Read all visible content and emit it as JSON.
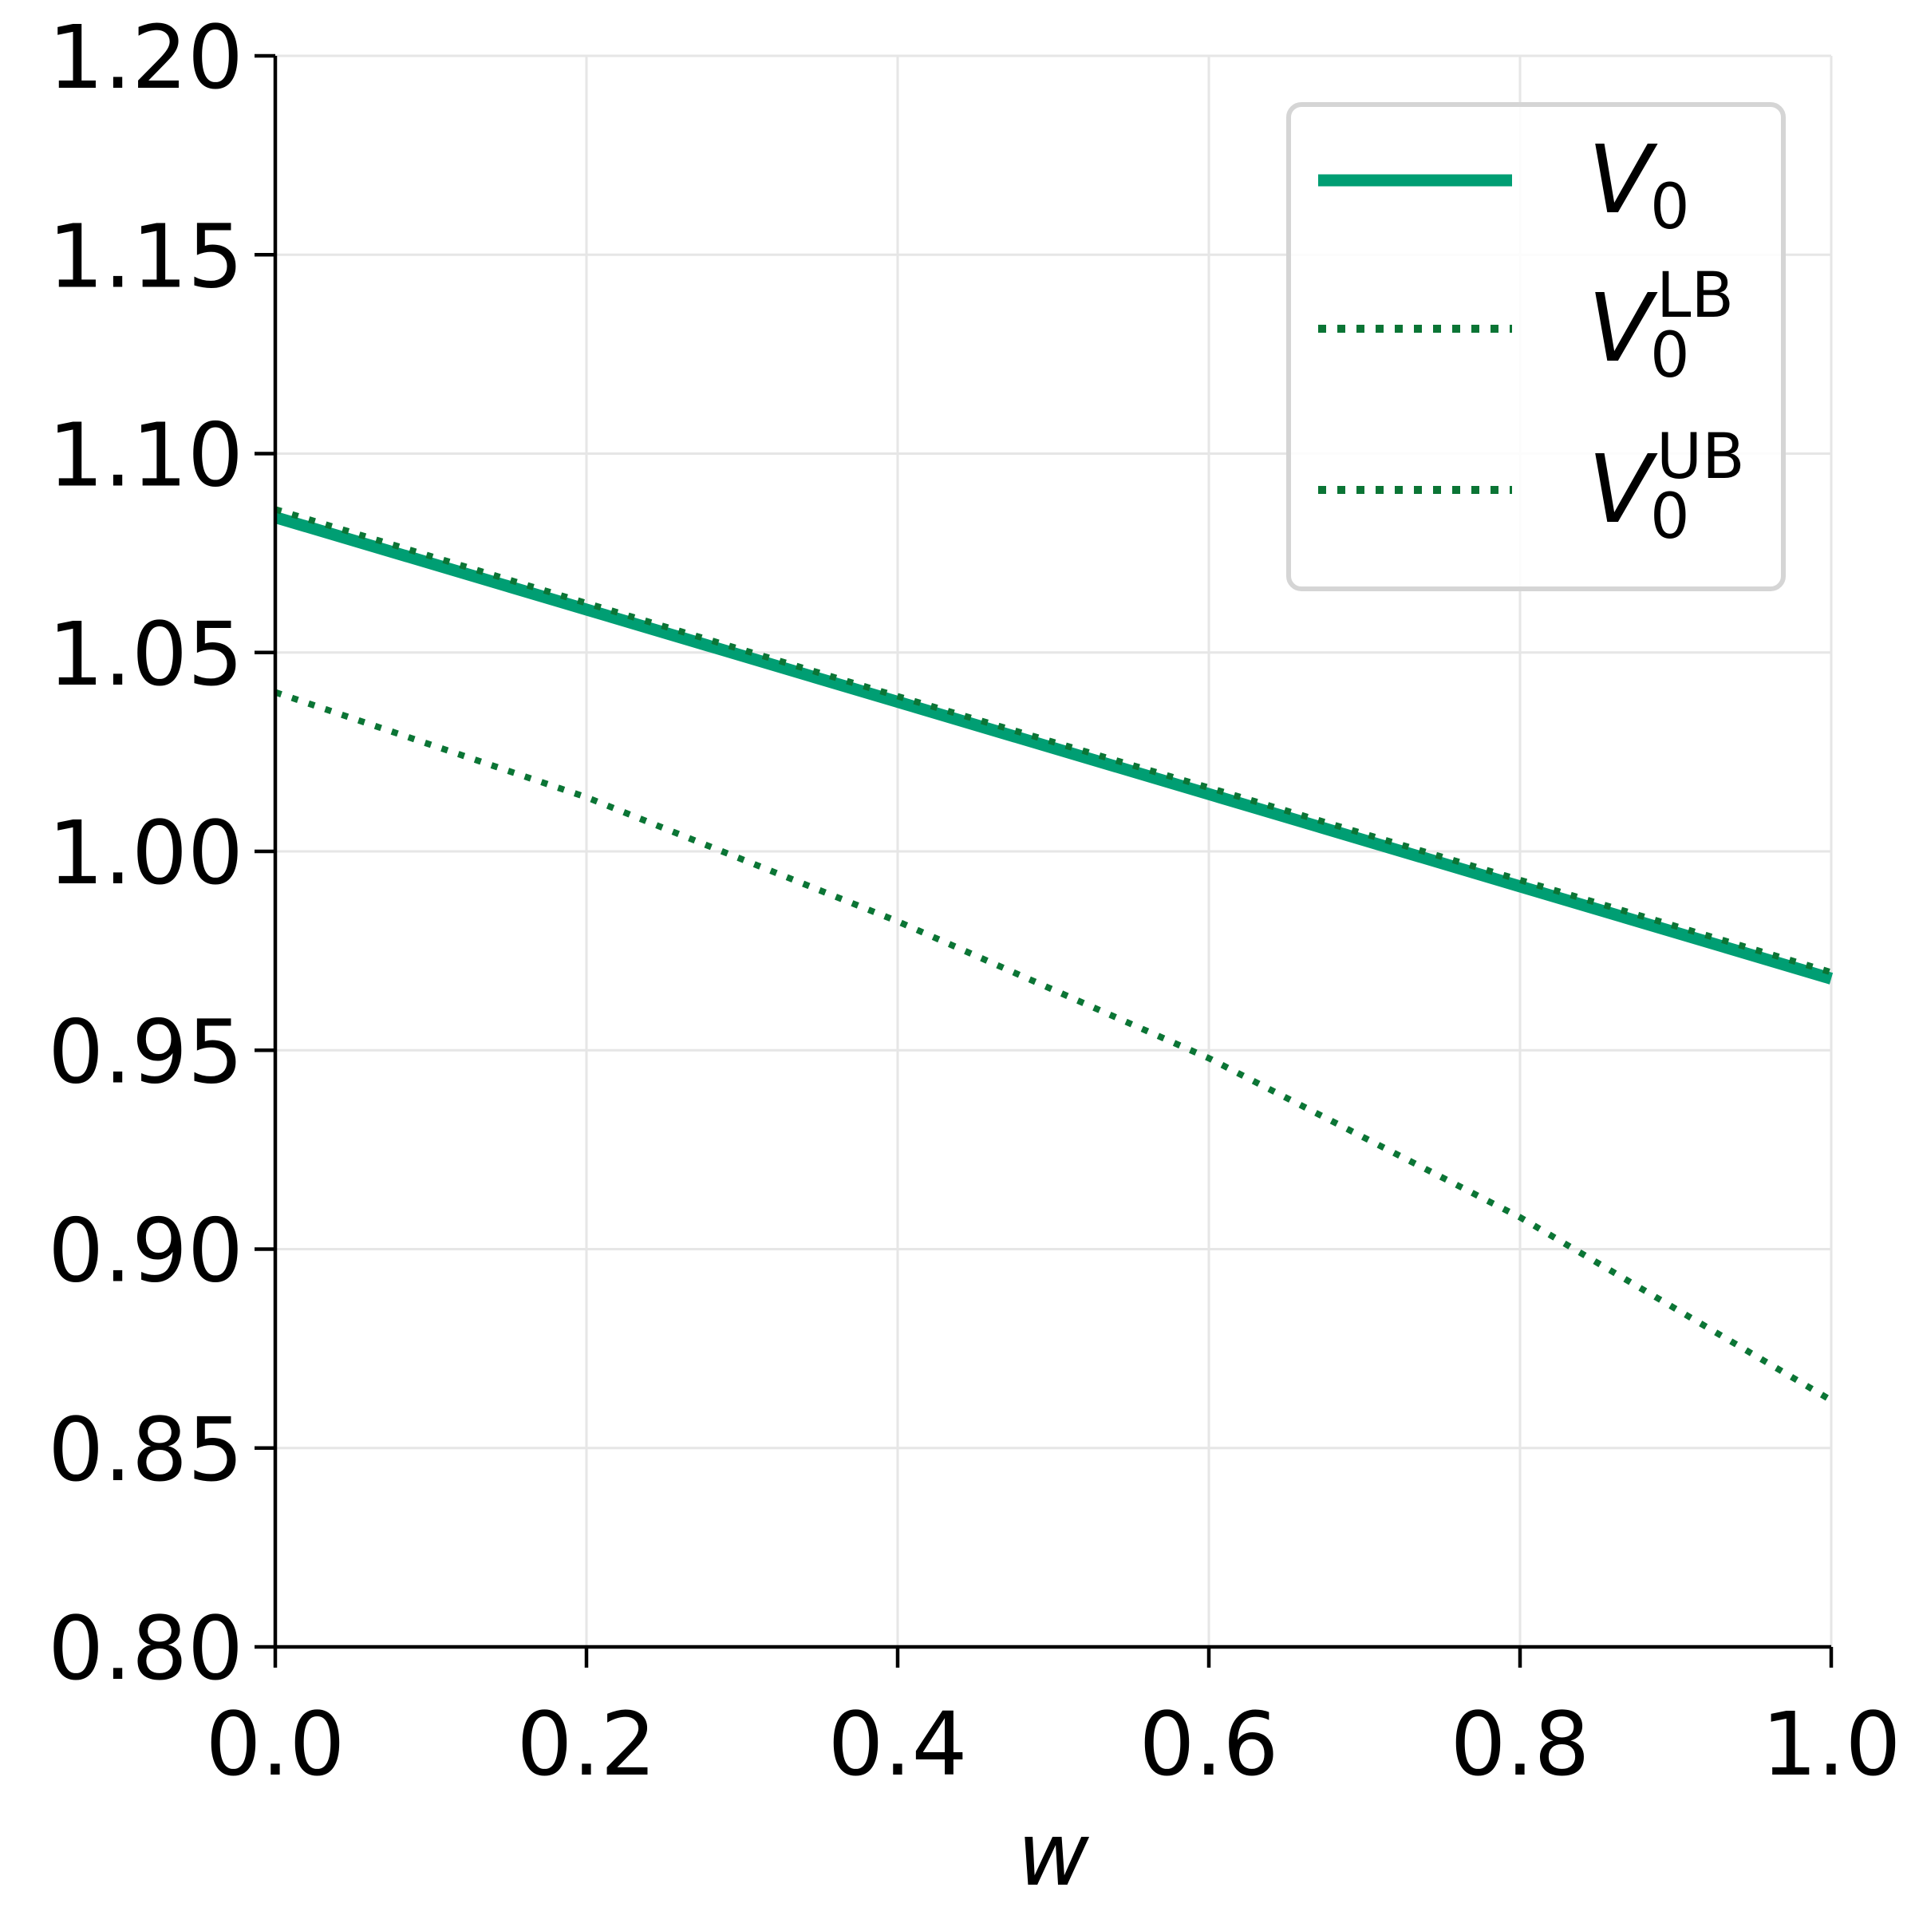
{
  "chart_data": {
    "type": "line",
    "title": "",
    "xlabel": "w",
    "ylabel": "",
    "xlim": [
      0.0,
      1.0
    ],
    "ylim": [
      0.8,
      1.2
    ],
    "xticks": [
      "0.0",
      "0.2",
      "0.4",
      "0.6",
      "0.8",
      "1.0"
    ],
    "yticks": [
      "0.80",
      "0.85",
      "0.90",
      "0.95",
      "1.00",
      "1.05",
      "1.10",
      "1.15",
      "1.20"
    ],
    "grid": true,
    "legend_position": "top-right",
    "series": [
      {
        "name": "V0",
        "legend_main": "V",
        "legend_sub": "0",
        "legend_sup": "",
        "style": "solid",
        "color": "#009E73",
        "x": [
          0.0,
          0.2,
          0.4,
          0.6,
          0.8,
          1.0
        ],
        "y": [
          1.084,
          1.0608,
          1.0376,
          1.0144,
          0.9912,
          0.968
        ]
      },
      {
        "name": "V0 LB",
        "legend_main": "V",
        "legend_sub": "0",
        "legend_sup": "LB",
        "style": "dotted",
        "color": "#0b7535",
        "x": [
          0.0,
          0.2,
          0.4,
          0.6,
          0.8,
          1.0
        ],
        "y": [
          1.04,
          1.0136,
          0.9824,
          0.948,
          0.908,
          0.862
        ]
      },
      {
        "name": "V0 UB",
        "legend_main": "V",
        "legend_sub": "0",
        "legend_sup": "UB",
        "style": "dotted",
        "color": "#0b7535",
        "x": [
          0.0,
          0.2,
          0.4,
          0.6,
          0.8,
          1.0
        ],
        "y": [
          1.086,
          1.0624,
          1.039,
          1.016,
          0.9928,
          0.9696
        ]
      }
    ]
  }
}
